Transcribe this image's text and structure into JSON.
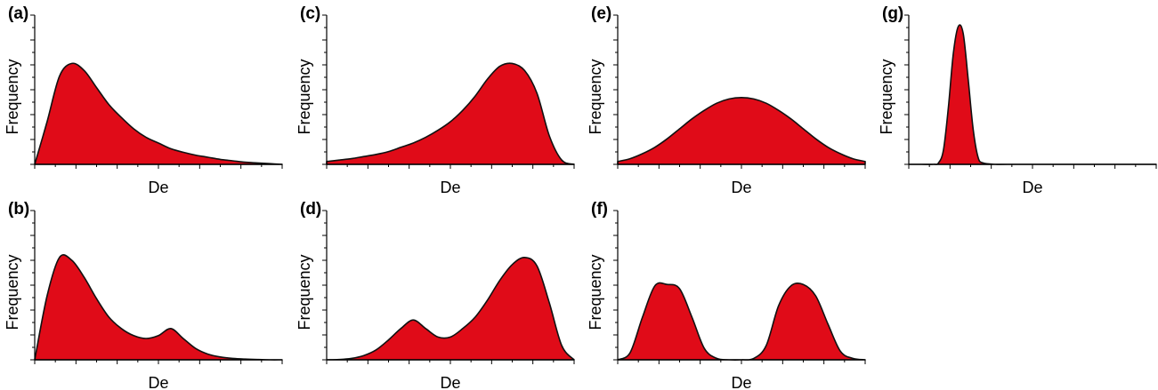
{
  "chart_data": [
    {
      "type": "area",
      "panel_label": "(a)",
      "xlabel": "De",
      "ylabel": "Frequency",
      "shape": "right-skewed unimodal",
      "x": [
        0,
        0.05,
        0.1,
        0.15,
        0.2,
        0.25,
        0.3,
        0.35,
        0.4,
        0.45,
        0.5,
        0.55,
        0.6,
        0.65,
        0.7,
        0.75,
        0.8,
        0.85,
        0.9,
        0.95,
        1.0
      ],
      "values": [
        0.0,
        0.3,
        0.62,
        0.71,
        0.66,
        0.54,
        0.42,
        0.33,
        0.25,
        0.19,
        0.15,
        0.11,
        0.085,
        0.065,
        0.05,
        0.035,
        0.025,
        0.015,
        0.01,
        0.005,
        0.0
      ]
    },
    {
      "type": "area",
      "panel_label": "(b)",
      "xlabel": "De",
      "ylabel": "Frequency",
      "shape": "bimodal, large left peak and small right peak",
      "x": [
        0,
        0.05,
        0.1,
        0.15,
        0.2,
        0.25,
        0.3,
        0.35,
        0.4,
        0.45,
        0.5,
        0.55,
        0.6,
        0.65,
        0.7,
        0.75,
        0.8,
        0.85,
        0.9,
        0.95,
        1.0
      ],
      "values": [
        0.0,
        0.45,
        0.72,
        0.7,
        0.58,
        0.43,
        0.3,
        0.22,
        0.17,
        0.15,
        0.17,
        0.22,
        0.15,
        0.08,
        0.04,
        0.02,
        0.01,
        0.005,
        0.002,
        0.0,
        0.0
      ]
    },
    {
      "type": "area",
      "panel_label": "(c)",
      "xlabel": "De",
      "ylabel": "Frequency",
      "shape": "left-skewed unimodal",
      "x": [
        0,
        0.05,
        0.1,
        0.15,
        0.2,
        0.25,
        0.3,
        0.35,
        0.4,
        0.45,
        0.5,
        0.55,
        0.6,
        0.65,
        0.7,
        0.75,
        0.8,
        0.85,
        0.9,
        0.95,
        1.0
      ],
      "values": [
        0.02,
        0.03,
        0.04,
        0.055,
        0.07,
        0.09,
        0.12,
        0.15,
        0.19,
        0.24,
        0.3,
        0.38,
        0.48,
        0.6,
        0.69,
        0.71,
        0.66,
        0.5,
        0.2,
        0.03,
        0.0
      ]
    },
    {
      "type": "area",
      "panel_label": "(d)",
      "xlabel": "De",
      "ylabel": "Frequency",
      "shape": "bimodal, small left peak and large right peak",
      "x": [
        0,
        0.05,
        0.1,
        0.15,
        0.2,
        0.25,
        0.3,
        0.35,
        0.4,
        0.45,
        0.5,
        0.55,
        0.6,
        0.65,
        0.7,
        0.75,
        0.8,
        0.85,
        0.9,
        0.95,
        1.0
      ],
      "values": [
        0.0,
        0.002,
        0.01,
        0.03,
        0.07,
        0.14,
        0.22,
        0.28,
        0.22,
        0.16,
        0.16,
        0.22,
        0.3,
        0.42,
        0.56,
        0.67,
        0.72,
        0.66,
        0.4,
        0.1,
        0.0
      ]
    },
    {
      "type": "area",
      "panel_label": "(e)",
      "xlabel": "De",
      "ylabel": "Frequency",
      "shape": "broad symmetric unimodal",
      "x": [
        0,
        0.05,
        0.1,
        0.15,
        0.2,
        0.25,
        0.3,
        0.35,
        0.4,
        0.45,
        0.5,
        0.55,
        0.6,
        0.65,
        0.7,
        0.75,
        0.8,
        0.85,
        0.9,
        0.95,
        1.0
      ],
      "values": [
        0.02,
        0.04,
        0.075,
        0.12,
        0.18,
        0.25,
        0.32,
        0.38,
        0.43,
        0.46,
        0.47,
        0.46,
        0.43,
        0.38,
        0.32,
        0.25,
        0.18,
        0.12,
        0.075,
        0.04,
        0.02
      ]
    },
    {
      "type": "area",
      "panel_label": "(f)",
      "xlabel": "De",
      "ylabel": "Frequency",
      "shape": "bimodal, two equal flat-topped peaks",
      "x": [
        0,
        0.05,
        0.1,
        0.15,
        0.2,
        0.25,
        0.3,
        0.35,
        0.4,
        0.45,
        0.5,
        0.55,
        0.6,
        0.65,
        0.7,
        0.75,
        0.8,
        0.85,
        0.9,
        0.95,
        1.0
      ],
      "values": [
        0.0,
        0.05,
        0.3,
        0.52,
        0.53,
        0.5,
        0.3,
        0.08,
        0.01,
        0.0,
        0.0,
        0.01,
        0.1,
        0.38,
        0.52,
        0.53,
        0.45,
        0.25,
        0.06,
        0.01,
        0.0
      ]
    },
    {
      "type": "area",
      "panel_label": "(g)",
      "xlabel": "De",
      "ylabel": "Frequency",
      "shape": "single narrow peak",
      "x": [
        0,
        0.05,
        0.1,
        0.12,
        0.14,
        0.16,
        0.18,
        0.2,
        0.22,
        0.24,
        0.26,
        0.28,
        0.3,
        0.35,
        0.4,
        0.6,
        0.8,
        1.0
      ],
      "values": [
        0.0,
        0.0,
        0.0,
        0.01,
        0.1,
        0.4,
        0.78,
        0.97,
        0.92,
        0.6,
        0.25,
        0.05,
        0.01,
        0.0,
        0.0,
        0.0,
        0.0,
        0.0
      ]
    }
  ]
}
